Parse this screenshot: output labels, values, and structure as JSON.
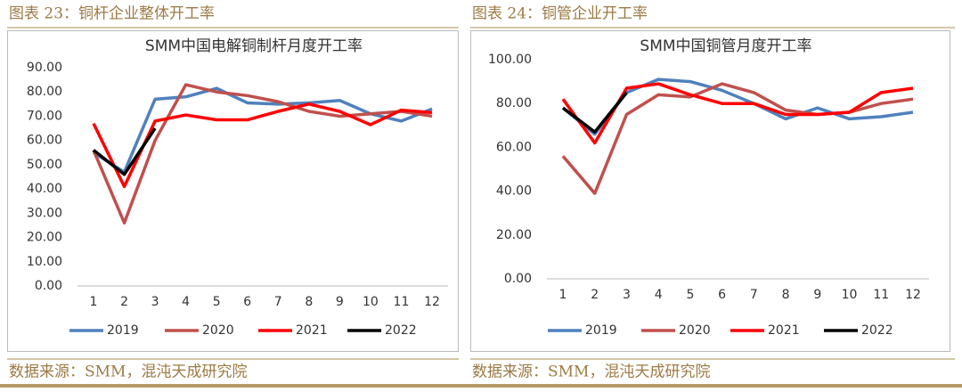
{
  "figures": [
    {
      "caption": "图表 23：铜杆企业整体开工率",
      "source": "数据来源：SMM，混沌天成研究院"
    },
    {
      "caption": "图表 24：铜管企业开工率",
      "source": "数据来源：SMM，混沌天成研究院"
    }
  ],
  "chart_data": [
    {
      "type": "line",
      "title": "SMM中国电解铜制杆月度开工率",
      "categories": [
        "1",
        "2",
        "3",
        "4",
        "5",
        "6",
        "7",
        "8",
        "9",
        "10",
        "11",
        "12"
      ],
      "series": [
        {
          "name": "2019",
          "color": "#4f81bd",
          "values": [
            55,
            47,
            77,
            78,
            81.5,
            75.5,
            75,
            75.5,
            76.5,
            71,
            68,
            73
          ]
        },
        {
          "name": "2020",
          "color": "#c0504d",
          "values": [
            56,
            26,
            60,
            83,
            80,
            78.5,
            76,
            72,
            70,
            71,
            72,
            70
          ]
        },
        {
          "name": "2021",
          "color": "#ff0000",
          "values": [
            67,
            41,
            68,
            70.5,
            68.5,
            68.5,
            72,
            75,
            72,
            66.5,
            72.5,
            71.5
          ]
        },
        {
          "name": "2022",
          "color": "#000000",
          "values": [
            56,
            46,
            65,
            null,
            null,
            null,
            null,
            null,
            null,
            null,
            null,
            null
          ]
        }
      ],
      "ylim": [
        0,
        90
      ],
      "yticks": [
        {
          "value": 0,
          "label": "0.00"
        },
        {
          "value": 10,
          "label": "10.00"
        },
        {
          "value": 20,
          "label": "20.00"
        },
        {
          "value": 30,
          "label": "30.00"
        },
        {
          "value": 40,
          "label": "40.00"
        },
        {
          "value": 50,
          "label": "50.00"
        },
        {
          "value": 60,
          "label": "60.00"
        },
        {
          "value": 70,
          "label": "70.00"
        },
        {
          "value": 80,
          "label": "80.00"
        },
        {
          "value": 90,
          "label": "90.00"
        }
      ],
      "grid": false,
      "legend": "bottom"
    },
    {
      "type": "line",
      "title": "SMM中国铜管月度开工率",
      "categories": [
        "1",
        "2",
        "3",
        "4",
        "5",
        "6",
        "7",
        "8",
        "9",
        "10",
        "11",
        "12"
      ],
      "series": [
        {
          "name": "2019",
          "color": "#4f81bd",
          "values": [
            78,
            66,
            85,
            91,
            90,
            86,
            80,
            73,
            78,
            73,
            74,
            76
          ]
        },
        {
          "name": "2020",
          "color": "#c0504d",
          "values": [
            56,
            39,
            75,
            84,
            83,
            89,
            85,
            77,
            75,
            76,
            80,
            82
          ]
        },
        {
          "name": "2021",
          "color": "#ff0000",
          "values": [
            82,
            62,
            87,
            89,
            84,
            80,
            80,
            75,
            75,
            76,
            85,
            87
          ]
        },
        {
          "name": "2022",
          "color": "#000000",
          "values": [
            78,
            67,
            85,
            null,
            null,
            null,
            null,
            null,
            null,
            null,
            null,
            null
          ]
        }
      ],
      "ylim": [
        0,
        100
      ],
      "yticks": [
        {
          "value": 0,
          "label": "0.00"
        },
        {
          "value": 20,
          "label": "20.00"
        },
        {
          "value": 40,
          "label": "40.00"
        },
        {
          "value": 60,
          "label": "60.00"
        },
        {
          "value": 80,
          "label": "80.00"
        },
        {
          "value": 100,
          "label": "100.00"
        }
      ],
      "grid": false,
      "legend": "bottom"
    }
  ]
}
